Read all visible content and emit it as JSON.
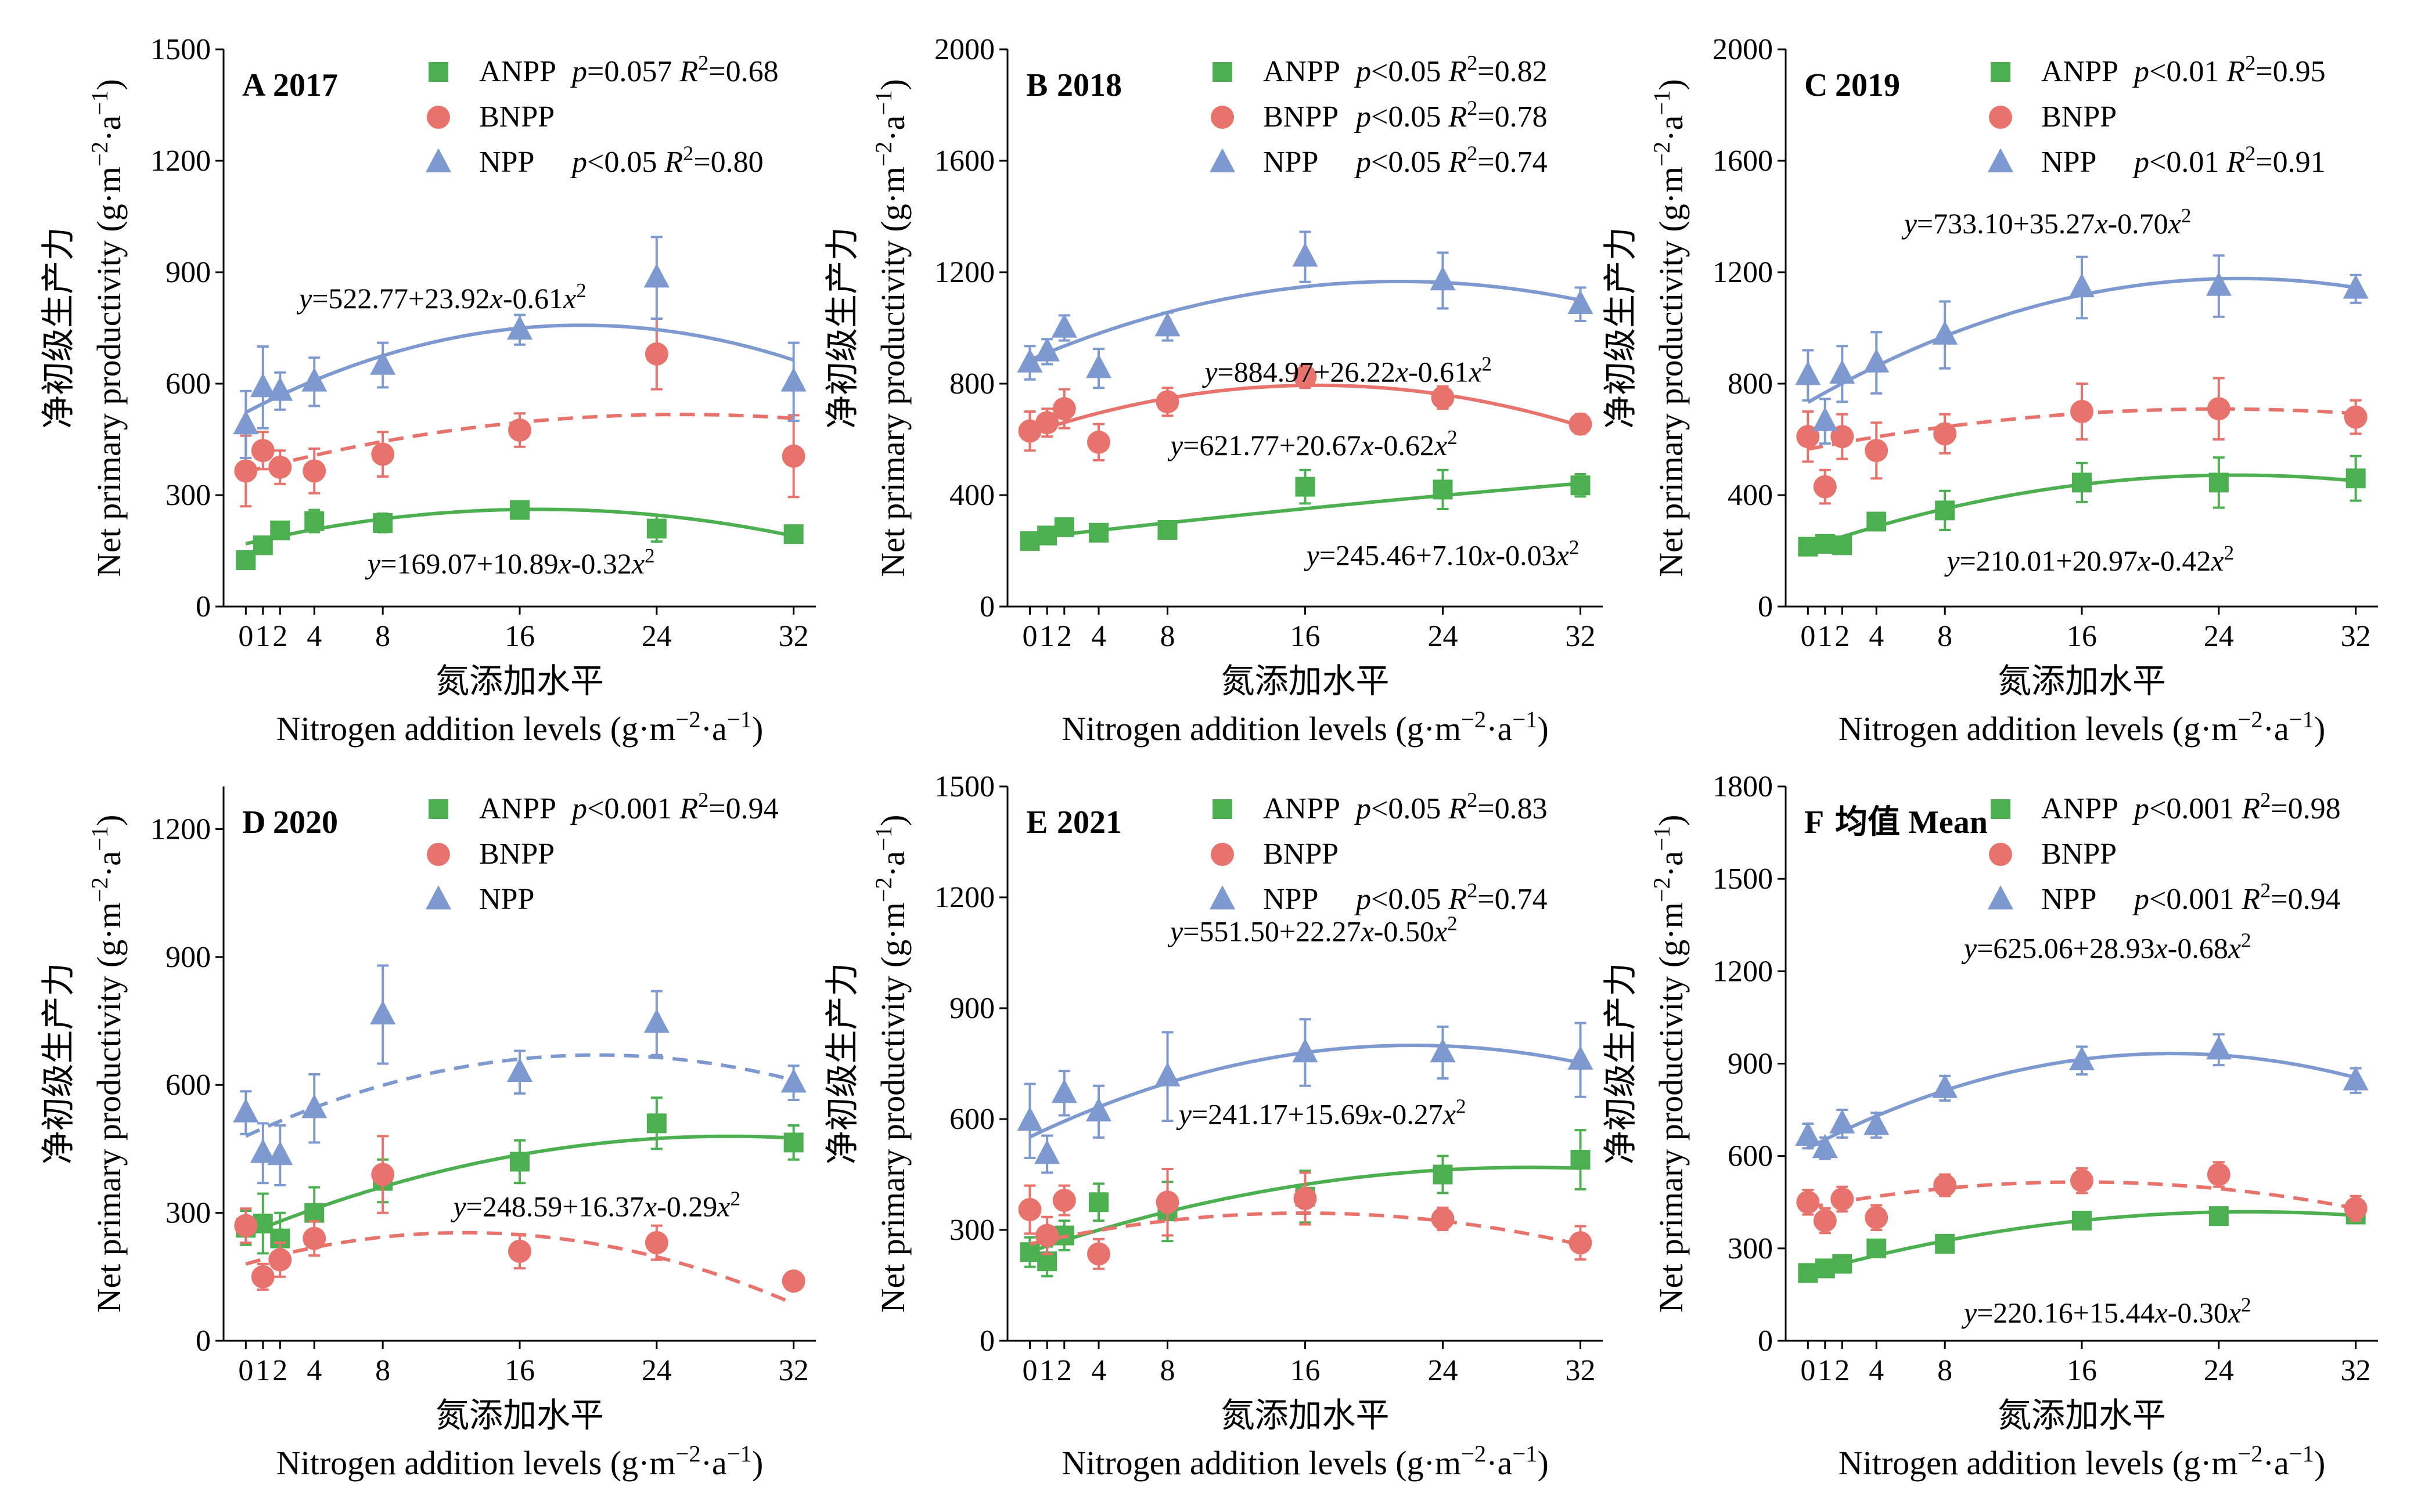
{
  "colors": {
    "ANPP": "#4caf50",
    "BNPP": "#e8736c",
    "NPP": "#7d99d0",
    "axis": "#000000"
  },
  "chart_data": [
    {
      "type": "scatter",
      "panel": "A",
      "title": "2017",
      "xlabel_cn": "氮添加水平",
      "xlabel_en": "Nitrogen addition levels (g·m⁻²·a⁻¹)",
      "ylabel_cn": "净初级生产力",
      "ylabel_en": "Net primary productivity (g·m⁻²·a⁻¹)",
      "x_ticks": [
        0,
        1,
        2,
        4,
        8,
        16,
        24,
        32
      ],
      "x_tick_labels": [
        "0",
        "1",
        "2",
        "4",
        "8",
        "16",
        "24",
        "32"
      ],
      "ylim": [
        0,
        1500
      ],
      "y_ticks": [
        0,
        300,
        600,
        900,
        1200,
        1500
      ],
      "legend": [
        {
          "name": "ANPP",
          "stats": "p=0.057 R²=0.68"
        },
        {
          "name": "BNPP",
          "stats": ""
        },
        {
          "name": "NPP",
          "stats": "p<0.05   R²=0.80"
        }
      ],
      "series": [
        {
          "name": "ANPP",
          "x": [
            0,
            1,
            2,
            4,
            8,
            16,
            24,
            32
          ],
          "y": [
            125,
            165,
            205,
            230,
            225,
            260,
            210,
            195
          ],
          "err": [
            20,
            15,
            20,
            30,
            25,
            20,
            35,
            20
          ],
          "fit": {
            "a": 169.07,
            "b": 10.89,
            "c": -0.32,
            "style": "solid"
          },
          "equation": "y=169.07+10.89x-0.32x²"
        },
        {
          "name": "BNPP",
          "x": [
            0,
            1,
            2,
            4,
            8,
            16,
            24,
            32
          ],
          "y": [
            365,
            420,
            375,
            365,
            410,
            475,
            680,
            405
          ],
          "err": [
            95,
            50,
            45,
            60,
            60,
            45,
            95,
            110
          ],
          "fit": {
            "a": 362,
            "b": 12.2,
            "c": -0.24,
            "style": "dashed"
          },
          "equation": ""
        },
        {
          "name": "NPP",
          "x": [
            0,
            1,
            2,
            4,
            8,
            16,
            24,
            32
          ],
          "y": [
            490,
            590,
            580,
            605,
            650,
            745,
            885,
            605
          ],
          "err": [
            90,
            110,
            50,
            65,
            60,
            40,
            110,
            105
          ],
          "fit": {
            "a": 522.77,
            "b": 23.92,
            "c": -0.61,
            "style": "solid"
          },
          "equation": "y=522.77+23.92x-0.61x²"
        }
      ]
    },
    {
      "type": "scatter",
      "panel": "B",
      "title": "2018",
      "xlabel_cn": "氮添加水平",
      "xlabel_en": "Nitrogen addition levels (g·m⁻²·a⁻¹)",
      "ylabel_cn": "净初级生产力",
      "ylabel_en": "Net primary productivity (g·m⁻²·a⁻¹)",
      "x_ticks": [
        0,
        1,
        2,
        4,
        8,
        16,
        24,
        32
      ],
      "x_tick_labels": [
        "0",
        "1",
        "2",
        "4",
        "8",
        "16",
        "24",
        "32"
      ],
      "ylim": [
        0,
        2000
      ],
      "y_ticks": [
        0,
        400,
        800,
        1200,
        1600,
        2000
      ],
      "legend": [
        {
          "name": "ANPP",
          "stats": "p<0.05 R²=0.82"
        },
        {
          "name": "BNPP",
          "stats": "p<0.05 R²=0.78"
        },
        {
          "name": "NPP",
          "stats": "p<0.05 R²=0.74"
        }
      ],
      "series": [
        {
          "name": "ANPP",
          "x": [
            0,
            1,
            2,
            4,
            8,
            16,
            24,
            32
          ],
          "y": [
            235,
            255,
            285,
            265,
            275,
            430,
            420,
            435
          ],
          "err": [
            30,
            30,
            30,
            25,
            20,
            60,
            70,
            40
          ],
          "fit": {
            "a": 245.46,
            "b": 7.1,
            "c": -0.03,
            "style": "solid"
          },
          "equation": "y=245.46+7.10x-0.03x²"
        },
        {
          "name": "BNPP",
          "x": [
            0,
            1,
            2,
            4,
            8,
            16,
            24,
            32
          ],
          "y": [
            630,
            660,
            710,
            590,
            735,
            825,
            750,
            655
          ],
          "err": [
            70,
            50,
            70,
            65,
            50,
            40,
            40,
            35
          ],
          "fit": {
            "a": 621.77,
            "b": 20.67,
            "c": -0.62,
            "style": "solid"
          },
          "equation": "y=621.77+20.67x-0.62x²"
        },
        {
          "name": "NPP",
          "x": [
            0,
            1,
            2,
            4,
            8,
            16,
            24,
            32
          ],
          "y": [
            875,
            915,
            1000,
            855,
            1005,
            1255,
            1170,
            1085
          ],
          "err": [
            60,
            45,
            45,
            70,
            50,
            90,
            100,
            60
          ],
          "fit": {
            "a": 884.97,
            "b": 26.22,
            "c": -0.61,
            "style": "solid"
          },
          "equation": "y=884.97+26.22x-0.61x²"
        }
      ]
    },
    {
      "type": "scatter",
      "panel": "C",
      "title": "2019",
      "xlabel_cn": "氮添加水平",
      "xlabel_en": "Nitrogen addition levels (g·m⁻²·a⁻¹)",
      "ylabel_cn": "净初级生产力",
      "ylabel_en": "Net primary productivity (g·m⁻²·a⁻¹)",
      "x_ticks": [
        0,
        1,
        2,
        4,
        8,
        16,
        24,
        32
      ],
      "x_tick_labels": [
        "0",
        "1",
        "2",
        "4",
        "8",
        "16",
        "24",
        "32"
      ],
      "ylim": [
        0,
        2000
      ],
      "y_ticks": [
        0,
        400,
        800,
        1200,
        1600,
        2000
      ],
      "legend": [
        {
          "name": "ANPP",
          "stats": "p<0.01 R²=0.95"
        },
        {
          "name": "BNPP",
          "stats": ""
        },
        {
          "name": "NPP",
          "stats": "p<0.01 R²=0.91"
        }
      ],
      "series": [
        {
          "name": "ANPP",
          "x": [
            0,
            1,
            2,
            4,
            8,
            16,
            24,
            32
          ],
          "y": [
            215,
            225,
            220,
            305,
            345,
            445,
            445,
            460
          ],
          "err": [
            25,
            20,
            20,
            30,
            70,
            70,
            90,
            80
          ],
          "fit": {
            "a": 210.01,
            "b": 20.97,
            "c": -0.42,
            "style": "solid"
          },
          "equation": "y=210.01+20.97x-0.42x²"
        },
        {
          "name": "BNPP",
          "x": [
            0,
            1,
            2,
            4,
            8,
            16,
            24,
            32
          ],
          "y": [
            610,
            430,
            610,
            560,
            620,
            700,
            710,
            680
          ],
          "err": [
            90,
            60,
            80,
            100,
            70,
            100,
            110,
            60
          ],
          "fit": {
            "a": 565,
            "b": 12,
            "c": -0.25,
            "style": "dashed"
          },
          "equation": ""
        },
        {
          "name": "NPP",
          "x": [
            0,
            1,
            2,
            4,
            8,
            16,
            24,
            32
          ],
          "y": [
            830,
            665,
            835,
            875,
            975,
            1145,
            1150,
            1140
          ],
          "err": [
            90,
            80,
            100,
            110,
            120,
            110,
            110,
            50
          ],
          "fit": {
            "a": 733.1,
            "b": 35.27,
            "c": -0.7,
            "style": "solid"
          },
          "equation": "y=733.10+35.27x-0.70x²"
        }
      ]
    },
    {
      "type": "scatter",
      "panel": "D",
      "title": "2020",
      "xlabel_cn": "氮添加水平",
      "xlabel_en": "Nitrogen addition levels (g·m⁻²·a⁻¹)",
      "ylabel_cn": "净初级生产力",
      "ylabel_en": "Net primary productivity (g·m⁻²·a⁻¹)",
      "x_ticks": [
        0,
        1,
        2,
        4,
        8,
        16,
        24,
        32
      ],
      "x_tick_labels": [
        "0",
        "1",
        "2",
        "4",
        "8",
        "16",
        "24",
        "32"
      ],
      "ylim": [
        0,
        1300
      ],
      "y_ticks": [
        0,
        300,
        600,
        900,
        1200
      ],
      "legend": [
        {
          "name": "ANPP",
          "stats": "p<0.001 R²=0.94"
        },
        {
          "name": "BNPP",
          "stats": ""
        },
        {
          "name": "NPP",
          "stats": ""
        }
      ],
      "series": [
        {
          "name": "ANPP",
          "x": [
            0,
            1,
            2,
            4,
            8,
            16,
            24,
            32
          ],
          "y": [
            265,
            275,
            240,
            300,
            375,
            420,
            510,
            465
          ],
          "err": [
            40,
            70,
            60,
            60,
            50,
            50,
            60,
            40
          ],
          "fit": {
            "a": 248.59,
            "b": 16.37,
            "c": -0.29,
            "style": "solid"
          },
          "equation": "y=248.59+16.37x-0.29x²"
        },
        {
          "name": "BNPP",
          "x": [
            0,
            1,
            2,
            4,
            8,
            16,
            24,
            32
          ],
          "y": [
            270,
            150,
            190,
            240,
            390,
            210,
            230,
            140
          ],
          "err": [
            40,
            30,
            40,
            40,
            90,
            40,
            40,
            20
          ],
          "fit": {
            "a": 180,
            "b": 11.5,
            "c": -0.45,
            "style": "dashed"
          },
          "equation": ""
        },
        {
          "name": "NPP",
          "x": [
            0,
            1,
            2,
            4,
            8,
            16,
            24,
            32
          ],
          "y": [
            535,
            440,
            435,
            545,
            765,
            630,
            745,
            605
          ],
          "err": [
            50,
            70,
            70,
            80,
            115,
            50,
            75,
            40
          ],
          "fit": {
            "a": 480,
            "b": 18.5,
            "c": -0.45,
            "style": "dashed"
          },
          "equation": ""
        }
      ]
    },
    {
      "type": "scatter",
      "panel": "E",
      "title": "2021",
      "xlabel_cn": "氮添加水平",
      "xlabel_en": "Nitrogen addition levels (g·m⁻²·a⁻¹)",
      "ylabel_cn": "净初级生产力",
      "ylabel_en": "Net primary productivity (g·m⁻²·a⁻¹)",
      "x_ticks": [
        0,
        1,
        2,
        4,
        8,
        16,
        24,
        32
      ],
      "x_tick_labels": [
        "0",
        "1",
        "2",
        "4",
        "8",
        "16",
        "24",
        "32"
      ],
      "ylim": [
        0,
        1500
      ],
      "y_ticks": [
        0,
        300,
        600,
        900,
        1200,
        1500
      ],
      "legend": [
        {
          "name": "ANPP",
          "stats": "p<0.05 R²=0.83"
        },
        {
          "name": "BNPP",
          "stats": ""
        },
        {
          "name": "NPP",
          "stats": "p<0.05 R²=0.74"
        }
      ],
      "series": [
        {
          "name": "ANPP",
          "x": [
            0,
            1,
            2,
            4,
            8,
            16,
            24,
            32
          ],
          "y": [
            240,
            215,
            285,
            375,
            350,
            390,
            450,
            490
          ],
          "err": [
            40,
            40,
            40,
            50,
            80,
            70,
            50,
            80
          ],
          "fit": {
            "a": 241.17,
            "b": 15.69,
            "c": -0.27,
            "style": "solid"
          },
          "equation": "y=241.17+15.69x-0.27x²"
        },
        {
          "name": "BNPP",
          "x": [
            0,
            1,
            2,
            4,
            8,
            16,
            24,
            32
          ],
          "y": [
            355,
            285,
            380,
            235,
            375,
            385,
            330,
            265
          ],
          "err": [
            65,
            50,
            40,
            40,
            90,
            70,
            30,
            45
          ],
          "fit": {
            "a": 262,
            "b": 10.5,
            "c": -0.33,
            "style": "dashed"
          },
          "equation": ""
        },
        {
          "name": "NPP",
          "x": [
            0,
            1,
            2,
            4,
            8,
            16,
            24,
            32
          ],
          "y": [
            595,
            505,
            670,
            620,
            715,
            780,
            780,
            760
          ],
          "err": [
            100,
            50,
            60,
            70,
            120,
            90,
            70,
            100
          ],
          "fit": {
            "a": 551.5,
            "b": 22.27,
            "c": -0.5,
            "style": "solid"
          },
          "equation": "y=551.50+22.27x-0.50x²"
        }
      ]
    },
    {
      "type": "scatter",
      "panel": "F",
      "title": "均值 Mean",
      "xlabel_cn": "氮添加水平",
      "xlabel_en": "Nitrogen addition levels (g·m⁻²·a⁻¹)",
      "ylabel_cn": "净初级生产力",
      "ylabel_en": "Net primary productivity (g·m⁻²·a⁻¹)",
      "x_ticks": [
        0,
        1,
        2,
        4,
        8,
        16,
        24,
        32
      ],
      "x_tick_labels": [
        "0",
        "1",
        "2",
        "4",
        "8",
        "16",
        "24",
        "32"
      ],
      "ylim": [
        0,
        1800
      ],
      "y_ticks": [
        0,
        300,
        600,
        900,
        1200,
        1500,
        1800
      ],
      "legend": [
        {
          "name": "ANPP",
          "stats": "p<0.001 R²=0.98"
        },
        {
          "name": "BNPP",
          "stats": ""
        },
        {
          "name": "NPP",
          "stats": "p<0.001 R²=0.94"
        }
      ],
      "series": [
        {
          "name": "ANPP",
          "x": [
            0,
            1,
            2,
            4,
            8,
            16,
            24,
            32
          ],
          "y": [
            220,
            235,
            250,
            300,
            315,
            390,
            405,
            410
          ],
          "err": [
            15,
            15,
            15,
            20,
            15,
            20,
            20,
            15
          ],
          "fit": {
            "a": 220.16,
            "b": 15.44,
            "c": -0.3,
            "style": "solid"
          },
          "equation": "y=220.16+15.44x-0.30x²"
        },
        {
          "name": "BNPP",
          "x": [
            0,
            1,
            2,
            4,
            8,
            16,
            24,
            32
          ],
          "y": [
            450,
            390,
            460,
            400,
            505,
            520,
            540,
            430
          ],
          "err": [
            40,
            40,
            40,
            40,
            35,
            40,
            40,
            40
          ],
          "fit": {
            "a": 432,
            "b": 10.5,
            "c": -0.33,
            "style": "dashed"
          },
          "equation": ""
        },
        {
          "name": "NPP",
          "x": [
            0,
            1,
            2,
            4,
            8,
            16,
            24,
            32
          ],
          "y": [
            665,
            625,
            705,
            700,
            820,
            910,
            945,
            845
          ],
          "err": [
            40,
            35,
            45,
            40,
            40,
            45,
            50,
            40
          ],
          "fit": {
            "a": 625.06,
            "b": 28.93,
            "c": -0.68,
            "style": "solid"
          },
          "equation": "y=625.06+28.93x-0.68x²"
        }
      ]
    }
  ]
}
